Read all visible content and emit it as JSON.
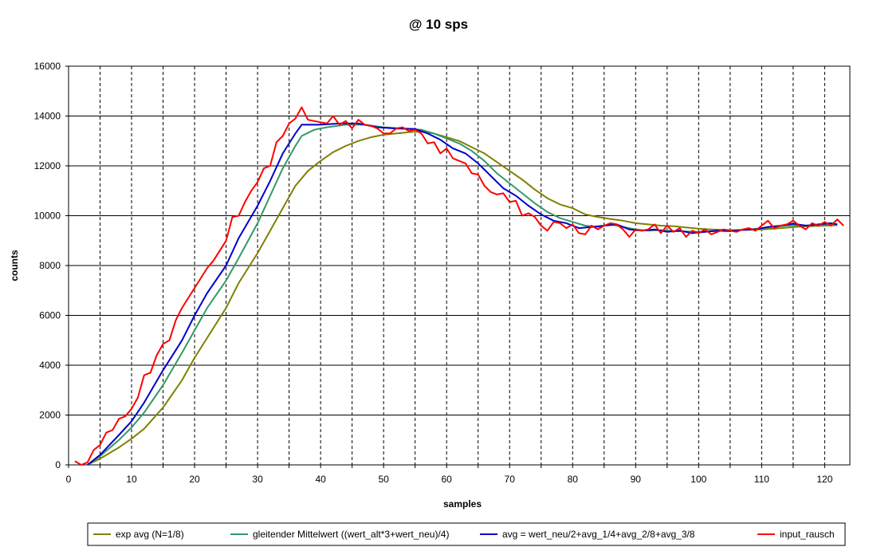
{
  "chart_data": {
    "type": "line",
    "title": "@ 10 sps",
    "xlabel": "samples",
    "ylabel": "counts",
    "xlim": [
      0,
      124
    ],
    "ylim": [
      0,
      16000
    ],
    "xticks": [
      0,
      10,
      20,
      30,
      40,
      50,
      60,
      70,
      80,
      90,
      100,
      110,
      120
    ],
    "yticks": [
      0,
      2000,
      4000,
      6000,
      8000,
      10000,
      12000,
      14000,
      16000
    ],
    "grid": "dashed vertical every 5 samples, solid horizontal every 2000",
    "legend_position": "bottom",
    "series": [
      {
        "name": "exp avg (N=1/8)",
        "color": "#808000",
        "points": [
          [
            3,
            0
          ],
          [
            5,
            250
          ],
          [
            8,
            700
          ],
          [
            10,
            1050
          ],
          [
            12,
            1450
          ],
          [
            15,
            2300
          ],
          [
            18,
            3400
          ],
          [
            20,
            4300
          ],
          [
            22,
            5100
          ],
          [
            25,
            6300
          ],
          [
            27,
            7300
          ],
          [
            30,
            8500
          ],
          [
            32,
            9400
          ],
          [
            34,
            10300
          ],
          [
            36,
            11200
          ],
          [
            38,
            11800
          ],
          [
            40,
            12200
          ],
          [
            42,
            12550
          ],
          [
            44,
            12800
          ],
          [
            46,
            13000
          ],
          [
            48,
            13150
          ],
          [
            50,
            13250
          ],
          [
            52,
            13300
          ],
          [
            54,
            13350
          ],
          [
            56,
            13380
          ],
          [
            58,
            13300
          ],
          [
            60,
            13150
          ],
          [
            62,
            13000
          ],
          [
            64,
            12750
          ],
          [
            66,
            12500
          ],
          [
            68,
            12150
          ],
          [
            70,
            11800
          ],
          [
            72,
            11450
          ],
          [
            74,
            11050
          ],
          [
            76,
            10700
          ],
          [
            78,
            10450
          ],
          [
            80,
            10300
          ],
          [
            82,
            10050
          ],
          [
            84,
            9950
          ],
          [
            86,
            9870
          ],
          [
            88,
            9800
          ],
          [
            90,
            9700
          ],
          [
            92,
            9650
          ],
          [
            94,
            9600
          ],
          [
            96,
            9580
          ],
          [
            98,
            9530
          ],
          [
            100,
            9480
          ],
          [
            102,
            9450
          ],
          [
            104,
            9430
          ],
          [
            106,
            9420
          ],
          [
            108,
            9430
          ],
          [
            110,
            9450
          ],
          [
            112,
            9480
          ],
          [
            114,
            9520
          ],
          [
            116,
            9560
          ],
          [
            118,
            9580
          ],
          [
            120,
            9600
          ],
          [
            122,
            9620
          ]
        ]
      },
      {
        "name": "gleitender Mittelwert ((wert_alt*3+wert_neu)/4)",
        "color": "#339966",
        "points": [
          [
            3,
            0
          ],
          [
            5,
            350
          ],
          [
            8,
            1000
          ],
          [
            10,
            1500
          ],
          [
            12,
            2100
          ],
          [
            15,
            3200
          ],
          [
            18,
            4500
          ],
          [
            20,
            5400
          ],
          [
            22,
            6300
          ],
          [
            25,
            7400
          ],
          [
            27,
            8300
          ],
          [
            30,
            9700
          ],
          [
            32,
            10800
          ],
          [
            34,
            11900
          ],
          [
            36,
            12800
          ],
          [
            37,
            13200
          ],
          [
            39,
            13450
          ],
          [
            41,
            13550
          ],
          [
            44,
            13650
          ],
          [
            47,
            13650
          ],
          [
            50,
            13550
          ],
          [
            53,
            13500
          ],
          [
            56,
            13450
          ],
          [
            58,
            13300
          ],
          [
            60,
            13100
          ],
          [
            62,
            12900
          ],
          [
            64,
            12600
          ],
          [
            66,
            12200
          ],
          [
            68,
            11700
          ],
          [
            70,
            11300
          ],
          [
            72,
            10900
          ],
          [
            74,
            10500
          ],
          [
            76,
            10150
          ],
          [
            78,
            9900
          ],
          [
            80,
            9750
          ],
          [
            82,
            9600
          ],
          [
            84,
            9550
          ],
          [
            86,
            9650
          ],
          [
            88,
            9550
          ],
          [
            90,
            9450
          ],
          [
            92,
            9400
          ],
          [
            94,
            9420
          ],
          [
            96,
            9380
          ],
          [
            98,
            9370
          ],
          [
            100,
            9350
          ],
          [
            102,
            9380
          ],
          [
            104,
            9400
          ],
          [
            106,
            9420
          ],
          [
            108,
            9450
          ],
          [
            110,
            9500
          ],
          [
            112,
            9550
          ],
          [
            114,
            9600
          ],
          [
            116,
            9620
          ],
          [
            118,
            9600
          ],
          [
            120,
            9650
          ],
          [
            122,
            9650
          ]
        ]
      },
      {
        "name": "avg = wert_neu/2+avg_1/4+avg_2/8+avg_3/8",
        "color": "#0000CC",
        "points": [
          [
            3,
            0
          ],
          [
            5,
            400
          ],
          [
            8,
            1200
          ],
          [
            10,
            1750
          ],
          [
            12,
            2500
          ],
          [
            15,
            3800
          ],
          [
            18,
            5000
          ],
          [
            20,
            6000
          ],
          [
            22,
            6900
          ],
          [
            25,
            8000
          ],
          [
            27,
            9100
          ],
          [
            30,
            10400
          ],
          [
            32,
            11400
          ],
          [
            34,
            12500
          ],
          [
            36,
            13300
          ],
          [
            37,
            13650
          ],
          [
            40,
            13650
          ],
          [
            43,
            13700
          ],
          [
            46,
            13700
          ],
          [
            49,
            13550
          ],
          [
            52,
            13500
          ],
          [
            55,
            13480
          ],
          [
            57,
            13300
          ],
          [
            59,
            13050
          ],
          [
            61,
            12700
          ],
          [
            63,
            12500
          ],
          [
            65,
            12100
          ],
          [
            67,
            11600
          ],
          [
            69,
            11100
          ],
          [
            71,
            10800
          ],
          [
            73,
            10400
          ],
          [
            75,
            10050
          ],
          [
            77,
            9800
          ],
          [
            79,
            9700
          ],
          [
            81,
            9500
          ],
          [
            83,
            9550
          ],
          [
            85,
            9600
          ],
          [
            87,
            9650
          ],
          [
            89,
            9450
          ],
          [
            91,
            9400
          ],
          [
            93,
            9450
          ],
          [
            95,
            9350
          ],
          [
            97,
            9400
          ],
          [
            99,
            9300
          ],
          [
            101,
            9350
          ],
          [
            103,
            9400
          ],
          [
            105,
            9380
          ],
          [
            107,
            9430
          ],
          [
            109,
            9450
          ],
          [
            111,
            9550
          ],
          [
            113,
            9600
          ],
          [
            115,
            9680
          ],
          [
            117,
            9600
          ],
          [
            119,
            9650
          ],
          [
            121,
            9700
          ],
          [
            122,
            9650
          ]
        ]
      },
      {
        "name": "input_rausch",
        "color": "#FF0000",
        "points": [
          [
            1,
            150
          ],
          [
            2,
            0
          ],
          [
            3,
            100
          ],
          [
            4,
            600
          ],
          [
            5,
            800
          ],
          [
            6,
            1300
          ],
          [
            7,
            1400
          ],
          [
            8,
            1850
          ],
          [
            9,
            1950
          ],
          [
            10,
            2250
          ],
          [
            11,
            2700
          ],
          [
            12,
            3600
          ],
          [
            13,
            3700
          ],
          [
            14,
            4400
          ],
          [
            15,
            4850
          ],
          [
            16,
            5000
          ],
          [
            17,
            5800
          ],
          [
            18,
            6300
          ],
          [
            19,
            6700
          ],
          [
            20,
            7100
          ],
          [
            21,
            7500
          ],
          [
            22,
            7900
          ],
          [
            23,
            8200
          ],
          [
            24,
            8600
          ],
          [
            25,
            9000
          ],
          [
            26,
            9950
          ],
          [
            27,
            10000
          ],
          [
            28,
            10550
          ],
          [
            29,
            11000
          ],
          [
            30,
            11350
          ],
          [
            31,
            11900
          ],
          [
            32,
            12000
          ],
          [
            33,
            12950
          ],
          [
            34,
            13200
          ],
          [
            35,
            13700
          ],
          [
            36,
            13900
          ],
          [
            37,
            14350
          ],
          [
            38,
            13850
          ],
          [
            39,
            13800
          ],
          [
            40,
            13750
          ],
          [
            41,
            13700
          ],
          [
            42,
            14000
          ],
          [
            43,
            13650
          ],
          [
            44,
            13800
          ],
          [
            45,
            13500
          ],
          [
            46,
            13850
          ],
          [
            47,
            13650
          ],
          [
            48,
            13600
          ],
          [
            49,
            13500
          ],
          [
            50,
            13300
          ],
          [
            51,
            13300
          ],
          [
            52,
            13500
          ],
          [
            53,
            13550
          ],
          [
            54,
            13400
          ],
          [
            55,
            13450
          ],
          [
            56,
            13300
          ],
          [
            57,
            12900
          ],
          [
            58,
            12950
          ],
          [
            59,
            12500
          ],
          [
            60,
            12700
          ],
          [
            61,
            12300
          ],
          [
            62,
            12200
          ],
          [
            63,
            12100
          ],
          [
            64,
            11700
          ],
          [
            65,
            11650
          ],
          [
            66,
            11200
          ],
          [
            67,
            10950
          ],
          [
            68,
            10850
          ],
          [
            69,
            10900
          ],
          [
            70,
            10550
          ],
          [
            71,
            10600
          ],
          [
            72,
            10000
          ],
          [
            73,
            10100
          ],
          [
            74,
            9950
          ],
          [
            75,
            9600
          ],
          [
            76,
            9400
          ],
          [
            77,
            9750
          ],
          [
            78,
            9700
          ],
          [
            79,
            9500
          ],
          [
            80,
            9650
          ],
          [
            81,
            9300
          ],
          [
            82,
            9250
          ],
          [
            83,
            9600
          ],
          [
            84,
            9450
          ],
          [
            85,
            9600
          ],
          [
            86,
            9700
          ],
          [
            87,
            9650
          ],
          [
            88,
            9450
          ],
          [
            89,
            9150
          ],
          [
            90,
            9450
          ],
          [
            91,
            9400
          ],
          [
            92,
            9450
          ],
          [
            93,
            9650
          ],
          [
            94,
            9300
          ],
          [
            95,
            9600
          ],
          [
            96,
            9350
          ],
          [
            97,
            9500
          ],
          [
            98,
            9150
          ],
          [
            99,
            9400
          ],
          [
            100,
            9300
          ],
          [
            101,
            9450
          ],
          [
            102,
            9250
          ],
          [
            103,
            9350
          ],
          [
            104,
            9450
          ],
          [
            105,
            9400
          ],
          [
            106,
            9350
          ],
          [
            107,
            9450
          ],
          [
            108,
            9500
          ],
          [
            109,
            9400
          ],
          [
            110,
            9600
          ],
          [
            111,
            9800
          ],
          [
            112,
            9500
          ],
          [
            113,
            9600
          ],
          [
            114,
            9650
          ],
          [
            115,
            9800
          ],
          [
            116,
            9600
          ],
          [
            117,
            9450
          ],
          [
            118,
            9700
          ],
          [
            119,
            9600
          ],
          [
            120,
            9750
          ],
          [
            121,
            9600
          ],
          [
            122,
            9850
          ],
          [
            123,
            9600
          ]
        ]
      }
    ]
  }
}
